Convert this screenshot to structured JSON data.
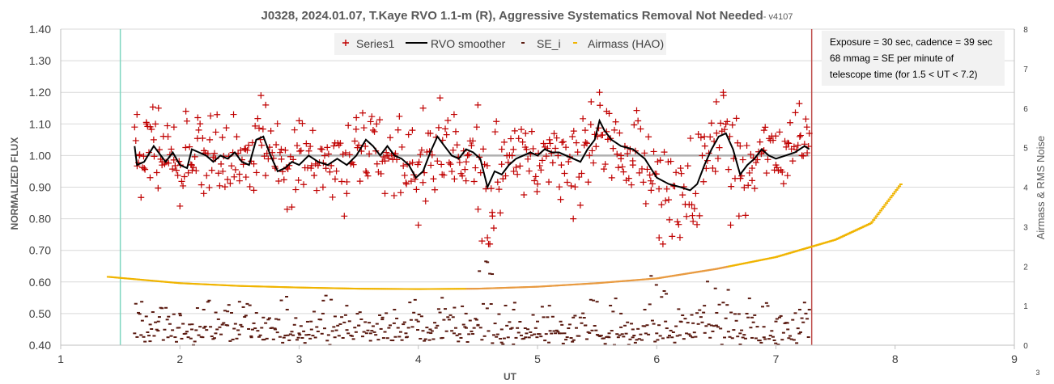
{
  "chart_data": {
    "type": "scatter",
    "title": "J0328, 2024.01.07, T.Kaye RVO 1.1-m (R), Aggressive Systematics Removal Not Needed",
    "title_suffix": "- v4107",
    "xlabel": "UT",
    "ylabel": "NORMALIZED FLUX",
    "y2label": "Airmass & RMS Noise",
    "xlim": [
      1,
      9
    ],
    "ylim": [
      0.4,
      1.4
    ],
    "y2lim": [
      0,
      8
    ],
    "xticks": [
      "1",
      "2",
      "3",
      "4",
      "5",
      "6",
      "7",
      "8",
      "9"
    ],
    "yticks": [
      "0.40",
      "0.50",
      "0.60",
      "0.70",
      "0.80",
      "0.90",
      "1.00",
      "1.10",
      "1.20",
      "1.30",
      "1.40"
    ],
    "y2ticks": [
      "0",
      "1",
      "2",
      "3",
      "4",
      "5",
      "6",
      "7",
      "8"
    ],
    "corner_label": "3",
    "grid": "horizontal",
    "legend_position": "top-center",
    "legend": [
      "Series1",
      "RVO smoother",
      "SE_i",
      "Airmass (HAO)"
    ],
    "annotation": [
      "Exposure = 30 sec, cadence = 39 sec",
      "68 mmag = SE per minute of",
      "telescope time  (for 1.5 < UT < 7.2)"
    ],
    "reference_line_y": 1.0,
    "vertical_lines": [
      {
        "x": 1.5,
        "color": "#7fd6c0"
      },
      {
        "x": 7.3,
        "color": "#c0504d"
      }
    ],
    "colors": {
      "series1": "#c00000",
      "smoother": "#000000",
      "se_i": "#5a1a10",
      "airmass": "#f0b400",
      "reference": "#b0b0b0",
      "grid": "#d9d9d9"
    },
    "series": [
      {
        "name": "Series1",
        "marker": "plus",
        "sampling": "about 550 points, 1.62 to 7.28 UT",
        "points": [
          [
            1.62,
            1.09
          ],
          [
            1.64,
            1.13
          ],
          [
            1.66,
            1.0
          ],
          [
            1.7,
            0.96
          ],
          [
            1.72,
            1.1
          ],
          [
            1.75,
            0.93
          ],
          [
            1.78,
            1.05
          ],
          [
            1.82,
            1.15
          ],
          [
            1.85,
            0.98
          ],
          [
            1.9,
            1.06
          ],
          [
            1.95,
            1.09
          ],
          [
            2.0,
            0.84
          ],
          [
            2.05,
            1.14
          ],
          [
            2.1,
            0.97
          ],
          [
            2.15,
            1.12
          ],
          [
            2.2,
            0.88
          ],
          [
            2.25,
            1.05
          ],
          [
            2.3,
            0.99
          ],
          [
            2.36,
            0.95
          ],
          [
            2.45,
            1.13
          ],
          [
            2.5,
            0.92
          ],
          [
            2.55,
            1.02
          ],
          [
            2.62,
            0.89
          ],
          [
            2.68,
            1.19
          ],
          [
            2.72,
            1.16
          ],
          [
            2.8,
            0.96
          ],
          [
            2.85,
            1.02
          ],
          [
            2.9,
            0.83
          ],
          [
            3.0,
            1.11
          ],
          [
            3.1,
            0.96
          ],
          [
            3.2,
            0.9
          ],
          [
            3.3,
            1.04
          ],
          [
            3.4,
            0.88
          ],
          [
            3.48,
            1.12
          ],
          [
            3.56,
            0.95
          ],
          [
            3.65,
            1.1
          ],
          [
            3.72,
            0.88
          ],
          [
            3.8,
            1.0
          ],
          [
            3.9,
            0.91
          ],
          [
            3.95,
            1.08
          ],
          [
            4.0,
            0.78
          ],
          [
            4.04,
            1.15
          ],
          [
            4.1,
            1.07
          ],
          [
            4.2,
            0.94
          ],
          [
            4.3,
            1.13
          ],
          [
            4.4,
            0.92
          ],
          [
            4.5,
            1.16
          ],
          [
            4.58,
            0.74
          ],
          [
            4.62,
            0.82
          ],
          [
            4.7,
            1.02
          ],
          [
            4.8,
            0.95
          ],
          [
            4.9,
            1.07
          ],
          [
            5.0,
            0.91
          ],
          [
            5.1,
            1.05
          ],
          [
            5.2,
            0.97
          ],
          [
            5.3,
            0.8
          ],
          [
            5.4,
            1.08
          ],
          [
            5.45,
            1.17
          ],
          [
            5.52,
            1.2
          ],
          [
            5.58,
            1.14
          ],
          [
            5.7,
            1.0
          ],
          [
            5.8,
            0.97
          ],
          [
            5.95,
            0.92
          ],
          [
            6.02,
            0.74
          ],
          [
            6.1,
            0.86
          ],
          [
            6.2,
            0.96
          ],
          [
            6.3,
            0.81
          ],
          [
            6.4,
            1.06
          ],
          [
            6.5,
            1.17
          ],
          [
            6.56,
            1.19
          ],
          [
            6.62,
            0.78
          ],
          [
            6.7,
            1.03
          ],
          [
            6.8,
            0.96
          ],
          [
            6.9,
            1.08
          ],
          [
            7.0,
            0.97
          ],
          [
            7.1,
            1.04
          ],
          [
            7.2,
            1.06
          ],
          [
            7.26,
            1.09
          ],
          [
            7.28,
            1.07
          ]
        ]
      },
      {
        "name": "RVO smoother",
        "line": "solid",
        "points": [
          [
            1.62,
            1.03
          ],
          [
            1.64,
            0.97
          ],
          [
            1.7,
            0.98
          ],
          [
            1.78,
            1.03
          ],
          [
            1.84,
            1.0
          ],
          [
            1.88,
            0.98
          ],
          [
            1.94,
            1.01
          ],
          [
            2.0,
            0.97
          ],
          [
            2.06,
            0.96
          ],
          [
            2.1,
            1.02
          ],
          [
            2.16,
            1.01
          ],
          [
            2.22,
            1.0
          ],
          [
            2.28,
            0.98
          ],
          [
            2.34,
            1.0
          ],
          [
            2.4,
            0.99
          ],
          [
            2.46,
            1.01
          ],
          [
            2.52,
            0.98
          ],
          [
            2.58,
            0.97
          ],
          [
            2.64,
            1.05
          ],
          [
            2.7,
            1.06
          ],
          [
            2.76,
            1.0
          ],
          [
            2.82,
            0.95
          ],
          [
            2.88,
            0.96
          ],
          [
            2.94,
            0.98
          ],
          [
            3.0,
            0.97
          ],
          [
            3.08,
            1.0
          ],
          [
            3.16,
            0.98
          ],
          [
            3.24,
            0.97
          ],
          [
            3.32,
            0.99
          ],
          [
            3.4,
            0.97
          ],
          [
            3.48,
            1.0
          ],
          [
            3.56,
            1.05
          ],
          [
            3.62,
            1.03
          ],
          [
            3.68,
            1.0
          ],
          [
            3.74,
            1.03
          ],
          [
            3.8,
            1.0
          ],
          [
            3.86,
            0.99
          ],
          [
            3.92,
            0.97
          ],
          [
            3.98,
            0.93
          ],
          [
            4.04,
            0.95
          ],
          [
            4.1,
            1.01
          ],
          [
            4.16,
            1.06
          ],
          [
            4.22,
            1.03
          ],
          [
            4.28,
            1.0
          ],
          [
            4.34,
            0.99
          ],
          [
            4.4,
            1.02
          ],
          [
            4.46,
            1.01
          ],
          [
            4.52,
            0.99
          ],
          [
            4.58,
            0.9
          ],
          [
            4.64,
            0.95
          ],
          [
            4.7,
            0.94
          ],
          [
            4.76,
            0.97
          ],
          [
            4.82,
            0.99
          ],
          [
            4.88,
            1.0
          ],
          [
            4.94,
            1.01
          ],
          [
            5.0,
            1.0
          ],
          [
            5.06,
            1.02
          ],
          [
            5.12,
            1.01
          ],
          [
            5.18,
            1.01
          ],
          [
            5.24,
            1.0
          ],
          [
            5.3,
            0.99
          ],
          [
            5.36,
            0.98
          ],
          [
            5.42,
            1.02
          ],
          [
            5.48,
            1.05
          ],
          [
            5.52,
            1.11
          ],
          [
            5.56,
            1.08
          ],
          [
            5.62,
            1.05
          ],
          [
            5.7,
            1.03
          ],
          [
            5.8,
            1.02
          ],
          [
            5.9,
            0.99
          ],
          [
            6.0,
            0.93
          ],
          [
            6.1,
            0.91
          ],
          [
            6.2,
            0.9
          ],
          [
            6.28,
            0.89
          ],
          [
            6.34,
            0.91
          ],
          [
            6.4,
            0.97
          ],
          [
            6.46,
            1.02
          ],
          [
            6.52,
            1.06
          ],
          [
            6.58,
            1.07
          ],
          [
            6.64,
            1.02
          ],
          [
            6.7,
            0.94
          ],
          [
            6.76,
            0.97
          ],
          [
            6.82,
            0.99
          ],
          [
            6.88,
            1.02
          ],
          [
            6.94,
            1.0
          ],
          [
            7.0,
            0.99
          ],
          [
            7.08,
            1.0
          ],
          [
            7.16,
            1.01
          ],
          [
            7.24,
            1.03
          ],
          [
            7.28,
            1.02
          ]
        ]
      },
      {
        "name": "SE_i",
        "marker": "dash",
        "axis": "secondary",
        "sampling": "about 550 points, 1.62 to 7.28 UT",
        "points": [
          [
            1.62,
            0.3
          ],
          [
            1.68,
            1.1
          ],
          [
            1.75,
            0.1
          ],
          [
            1.82,
            0.6
          ],
          [
            1.9,
            0.2
          ],
          [
            2.0,
            0.8
          ],
          [
            2.1,
            0.4
          ],
          [
            2.2,
            0.9
          ],
          [
            2.3,
            0.3
          ],
          [
            2.4,
            0.5
          ],
          [
            2.5,
            1.1
          ],
          [
            2.6,
            0.2
          ],
          [
            2.7,
            0.7
          ],
          [
            2.8,
            0.4
          ],
          [
            2.9,
            0.9
          ],
          [
            3.0,
            0.3
          ],
          [
            3.1,
            0.6
          ],
          [
            3.2,
            0.8
          ],
          [
            3.3,
            0.2
          ],
          [
            3.4,
            1.0
          ],
          [
            3.5,
            0.5
          ],
          [
            3.6,
            0.3
          ],
          [
            3.7,
            0.7
          ],
          [
            3.8,
            0.9
          ],
          [
            3.9,
            0.2
          ],
          [
            4.0,
            0.6
          ],
          [
            4.1,
            0.4
          ],
          [
            4.2,
            1.2
          ],
          [
            4.3,
            0.3
          ],
          [
            4.4,
            0.8
          ],
          [
            4.5,
            0.5
          ],
          [
            4.58,
            2.1
          ],
          [
            4.62,
            1.8
          ],
          [
            4.7,
            0.4
          ],
          [
            4.8,
            0.9
          ],
          [
            4.9,
            0.2
          ],
          [
            5.0,
            0.6
          ],
          [
            5.1,
            1.0
          ],
          [
            5.2,
            0.3
          ],
          [
            5.3,
            0.7
          ],
          [
            5.4,
            0.5
          ],
          [
            5.5,
            1.1
          ],
          [
            5.6,
            0.2
          ],
          [
            5.7,
            0.8
          ],
          [
            5.8,
            0.4
          ],
          [
            5.9,
            0.9
          ],
          [
            6.0,
            0.3
          ],
          [
            6.08,
            1.3
          ],
          [
            6.2,
            0.6
          ],
          [
            6.3,
            0.2
          ],
          [
            6.4,
            1.0
          ],
          [
            6.5,
            0.5
          ],
          [
            6.6,
            1.4
          ],
          [
            6.7,
            0.3
          ],
          [
            6.8,
            0.7
          ],
          [
            6.9,
            0.2
          ],
          [
            7.0,
            0.6
          ],
          [
            7.1,
            0.4
          ],
          [
            7.2,
            0.9
          ],
          [
            7.28,
            0.9
          ]
        ]
      },
      {
        "name": "Airmass (HAO)",
        "marker": "dash",
        "axis": "secondary",
        "sampling": "smooth curve, 1.4 to 8.05 UT",
        "points": [
          [
            1.4,
            1.73
          ],
          [
            2.0,
            1.57
          ],
          [
            2.5,
            1.5
          ],
          [
            3.0,
            1.46
          ],
          [
            3.5,
            1.43
          ],
          [
            4.0,
            1.42
          ],
          [
            4.5,
            1.43
          ],
          [
            5.0,
            1.48
          ],
          [
            5.5,
            1.57
          ],
          [
            6.0,
            1.69
          ],
          [
            6.5,
            1.93
          ],
          [
            7.0,
            2.23
          ],
          [
            7.5,
            2.67
          ],
          [
            7.8,
            3.09
          ],
          [
            8.05,
            4.08
          ]
        ]
      }
    ]
  }
}
